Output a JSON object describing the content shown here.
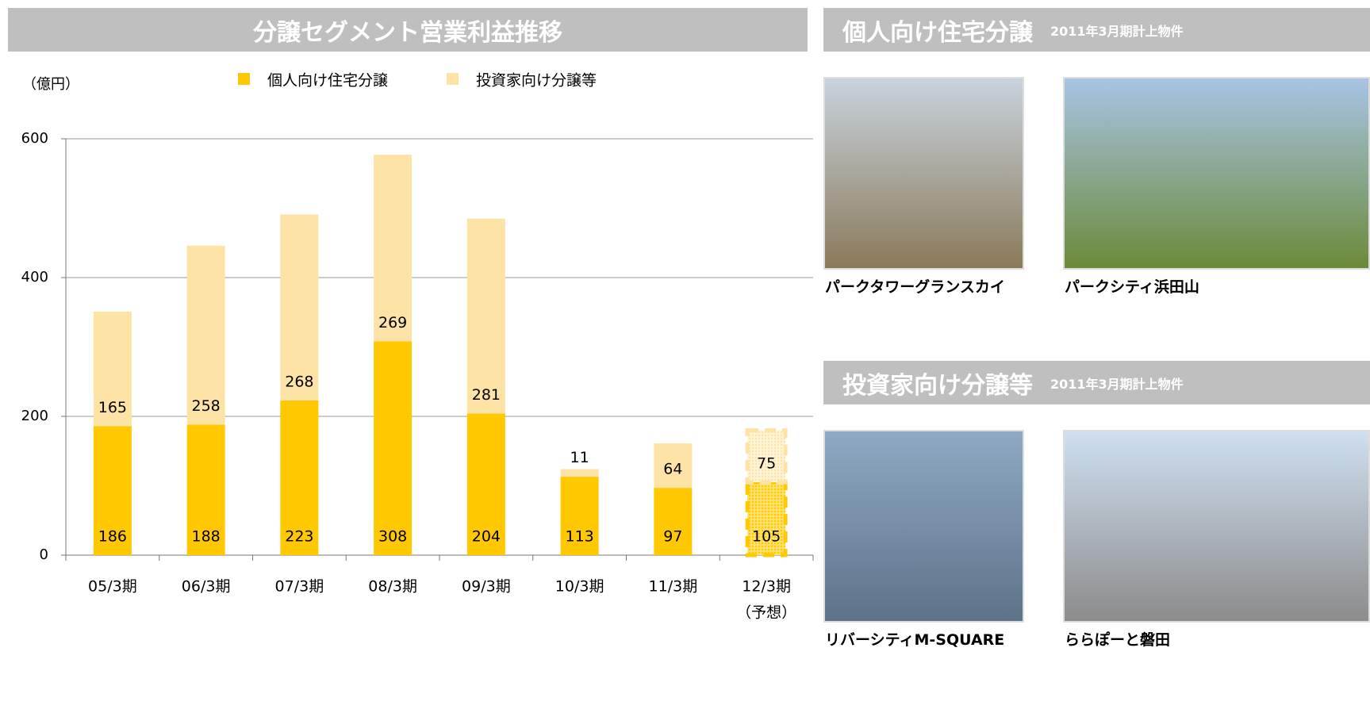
{
  "chart_data": {
    "type": "stacked-bar",
    "title": "分譲セグメント営業利益推移",
    "y_unit": "（億円）",
    "categories": [
      "05/3期",
      "06/3期",
      "07/3期",
      "08/3期",
      "09/3期",
      "10/3期",
      "11/3期",
      "12/3期"
    ],
    "forecast_note": "（予想）",
    "series": [
      {
        "name": "個人向け住宅分譲",
        "color": "#ffc800",
        "values": [
          186,
          188,
          223,
          308,
          204,
          113,
          97,
          105
        ]
      },
      {
        "name": "投資家向け分譲等",
        "color": "#fde3a6",
        "values": [
          165,
          258,
          268,
          269,
          281,
          11,
          64,
          75
        ]
      }
    ],
    "ylim": [
      0,
      600
    ],
    "yticks": [
      0,
      200,
      400,
      600
    ],
    "grid": true
  },
  "panels": [
    {
      "title": "個人向け住宅分譲",
      "subtitle": "2011年3月期計上物件",
      "items": [
        {
          "caption": "パークタワーグランスカイ"
        },
        {
          "caption": "パークシティ浜田山"
        }
      ]
    },
    {
      "title": "投資家向け分譲等",
      "subtitle": "2011年3月期計上物件",
      "items": [
        {
          "caption": "リバーシティM-SQUARE"
        },
        {
          "caption": "ららぽーと磐田"
        }
      ]
    }
  ]
}
